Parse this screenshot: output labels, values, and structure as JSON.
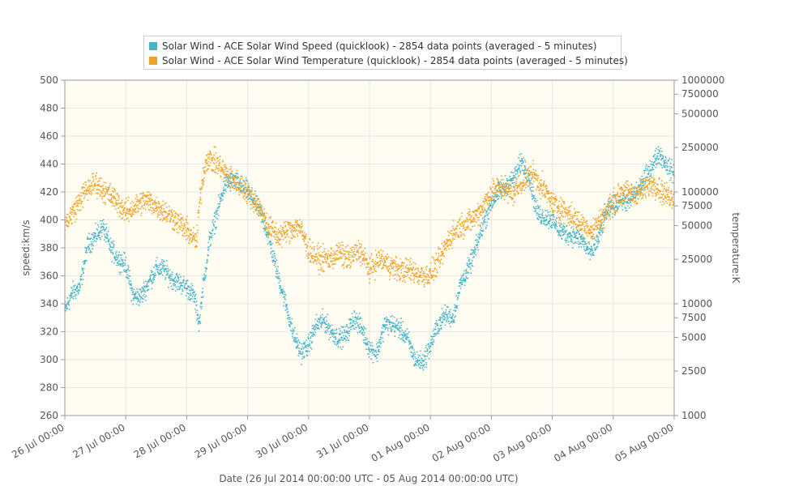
{
  "chart_data": {
    "type": "scatter",
    "title": "",
    "xlabel": "Date (26 Jul 2014 00:00:00 UTC - 05 Aug 2014 00:00:00 UTC)",
    "ylabel_left": "speed:km/s",
    "ylabel_right": "temperature:K",
    "x_range": [
      "26 Jul 2014 00:00",
      "05 Aug 2014 00:00"
    ],
    "x_tick_labels": [
      "26 Jul 00:00",
      "27 Jul 00:00",
      "28 Jul 00:00",
      "29 Jul 00:00",
      "30 Jul 00:00",
      "31 Jul 00:00",
      "01 Aug 00:00",
      "02 Aug 00:00",
      "03 Aug 00:00",
      "04 Aug 00:00",
      "05 Aug 00:00"
    ],
    "ylim_left": [
      260,
      500
    ],
    "y_ticks_left": [
      260,
      280,
      300,
      320,
      340,
      360,
      380,
      400,
      420,
      440,
      460,
      480,
      500
    ],
    "ylim_right": [
      1000,
      1000000
    ],
    "y_scale_right": "log",
    "y_ticks_right": [
      1000,
      2500,
      5000,
      7500,
      10000,
      25000,
      50000,
      75000,
      100000,
      250000,
      500000,
      750000,
      1000000
    ],
    "y_tick_labels_right": [
      "1000",
      "2500",
      "5000",
      "7500",
      "10000",
      "25000",
      "50000",
      "75000",
      "100000",
      "250000",
      "500000",
      "750000",
      "1000000"
    ],
    "grid": true,
    "legend_position": "top-center",
    "series": [
      {
        "name": "Solar Wind - ACE Solar Wind Speed (quicklook) - 2854 data points (averaged - 5 minutes)",
        "axis": "left",
        "color": "#46b3c8",
        "points_per_hour": 12,
        "profile": [
          [
            "26 Jul 2014 00:00",
            335
          ],
          [
            "26 Jul 2014 03:00",
            348
          ],
          [
            "26 Jul 2014 06:00",
            352
          ],
          [
            "26 Jul 2014 09:00",
            382
          ],
          [
            "26 Jul 2014 12:00",
            388
          ],
          [
            "26 Jul 2014 15:00",
            395
          ],
          [
            "26 Jul 2014 18:00",
            380
          ],
          [
            "26 Jul 2014 21:00",
            372
          ],
          [
            "27 Jul 2014 00:00",
            368
          ],
          [
            "27 Jul 2014 03:00",
            345
          ],
          [
            "27 Jul 2014 06:00",
            345
          ],
          [
            "27 Jul 2014 09:00",
            355
          ],
          [
            "27 Jul 2014 12:00",
            365
          ],
          [
            "27 Jul 2014 15:00",
            365
          ],
          [
            "27 Jul 2014 18:00",
            358
          ],
          [
            "27 Jul 2014 21:00",
            355
          ],
          [
            "28 Jul 2014 00:00",
            352
          ],
          [
            "28 Jul 2014 03:00",
            345
          ],
          [
            "28 Jul 2014 05:00",
            325
          ],
          [
            "28 Jul 2014 06:00",
            345
          ],
          [
            "28 Jul 2014 09:00",
            385
          ],
          [
            "28 Jul 2014 12:00",
            405
          ],
          [
            "28 Jul 2014 15:00",
            425
          ],
          [
            "28 Jul 2014 18:00",
            428
          ],
          [
            "28 Jul 2014 21:00",
            425
          ],
          [
            "29 Jul 2014 00:00",
            420
          ],
          [
            "29 Jul 2014 03:00",
            412
          ],
          [
            "29 Jul 2014 06:00",
            402
          ],
          [
            "29 Jul 2014 09:00",
            382
          ],
          [
            "29 Jul 2014 12:00",
            360
          ],
          [
            "29 Jul 2014 15:00",
            340
          ],
          [
            "29 Jul 2014 18:00",
            318
          ],
          [
            "29 Jul 2014 21:00",
            305
          ],
          [
            "30 Jul 2014 00:00",
            310
          ],
          [
            "30 Jul 2014 03:00",
            325
          ],
          [
            "30 Jul 2014 06:00",
            328
          ],
          [
            "30 Jul 2014 09:00",
            320
          ],
          [
            "30 Jul 2014 12:00",
            315
          ],
          [
            "30 Jul 2014 15:00",
            318
          ],
          [
            "30 Jul 2014 18:00",
            330
          ],
          [
            "30 Jul 2014 21:00",
            322
          ],
          [
            "31 Jul 2014 00:00",
            308
          ],
          [
            "31 Jul 2014 03:00",
            305
          ],
          [
            "31 Jul 2014 06:00",
            325
          ],
          [
            "31 Jul 2014 09:00",
            325
          ],
          [
            "31 Jul 2014 12:00",
            322
          ],
          [
            "31 Jul 2014 15:00",
            315
          ],
          [
            "31 Jul 2014 18:00",
            300
          ],
          [
            "31 Jul 2014 21:00",
            298
          ],
          [
            "01 Aug 2014 00:00",
            310
          ],
          [
            "01 Aug 2014 03:00",
            325
          ],
          [
            "01 Aug 2014 06:00",
            332
          ],
          [
            "01 Aug 2014 09:00",
            330
          ],
          [
            "01 Aug 2014 12:00",
            355
          ],
          [
            "01 Aug 2014 15:00",
            365
          ],
          [
            "01 Aug 2014 18:00",
            380
          ],
          [
            "01 Aug 2014 21:00",
            398
          ],
          [
            "02 Aug 2014 00:00",
            412
          ],
          [
            "02 Aug 2014 03:00",
            420
          ],
          [
            "02 Aug 2014 06:00",
            425
          ],
          [
            "02 Aug 2014 09:00",
            430
          ],
          [
            "02 Aug 2014 12:00",
            442
          ],
          [
            "02 Aug 2014 15:00",
            430
          ],
          [
            "02 Aug 2014 18:00",
            405
          ],
          [
            "02 Aug 2014 21:00",
            402
          ],
          [
            "03 Aug 2014 00:00",
            400
          ],
          [
            "03 Aug 2014 03:00",
            392
          ],
          [
            "03 Aug 2014 06:00",
            390
          ],
          [
            "03 Aug 2014 09:00",
            388
          ],
          [
            "03 Aug 2014 12:00",
            385
          ],
          [
            "03 Aug 2014 15:00",
            375
          ],
          [
            "03 Aug 2014 18:00",
            385
          ],
          [
            "03 Aug 2014 21:00",
            405
          ],
          [
            "04 Aug 2014 00:00",
            410
          ],
          [
            "04 Aug 2014 03:00",
            415
          ],
          [
            "04 Aug 2014 06:00",
            412
          ],
          [
            "04 Aug 2014 09:00",
            420
          ],
          [
            "04 Aug 2014 12:00",
            428
          ],
          [
            "04 Aug 2014 15:00",
            438
          ],
          [
            "04 Aug 2014 18:00",
            448
          ],
          [
            "04 Aug 2014 21:00",
            440
          ],
          [
            "05 Aug 2014 00:00",
            432
          ]
        ]
      },
      {
        "name": "Solar Wind - ACE Solar Wind Temperature (quicklook) - 2854 data points (averaged - 5 minutes)",
        "axis": "right",
        "color": "#f0a12a",
        "points_per_hour": 12,
        "profile": [
          [
            "26 Jul 2014 00:00",
            50000
          ],
          [
            "26 Jul 2014 04:00",
            70000
          ],
          [
            "26 Jul 2014 08:00",
            100000
          ],
          [
            "26 Jul 2014 12:00",
            120000
          ],
          [
            "26 Jul 2014 16:00",
            100000
          ],
          [
            "26 Jul 2014 20:00",
            85000
          ],
          [
            "27 Jul 2014 00:00",
            65000
          ],
          [
            "27 Jul 2014 04:00",
            75000
          ],
          [
            "27 Jul 2014 08:00",
            85000
          ],
          [
            "27 Jul 2014 12:00",
            75000
          ],
          [
            "27 Jul 2014 16:00",
            65000
          ],
          [
            "27 Jul 2014 20:00",
            55000
          ],
          [
            "28 Jul 2014 00:00",
            45000
          ],
          [
            "28 Jul 2014 04:00",
            35000
          ],
          [
            "28 Jul 2014 08:00",
            200000
          ],
          [
            "28 Jul 2014 12:00",
            180000
          ],
          [
            "28 Jul 2014 16:00",
            140000
          ],
          [
            "28 Jul 2014 20:00",
            120000
          ],
          [
            "29 Jul 2014 00:00",
            100000
          ],
          [
            "29 Jul 2014 04:00",
            75000
          ],
          [
            "29 Jul 2014 08:00",
            50000
          ],
          [
            "29 Jul 2014 12:00",
            40000
          ],
          [
            "29 Jul 2014 16:00",
            45000
          ],
          [
            "29 Jul 2014 20:00",
            50000
          ],
          [
            "30 Jul 2014 00:00",
            30000
          ],
          [
            "30 Jul 2014 04:00",
            25000
          ],
          [
            "30 Jul 2014 08:00",
            25000
          ],
          [
            "30 Jul 2014 12:00",
            28000
          ],
          [
            "30 Jul 2014 16:00",
            25000
          ],
          [
            "30 Jul 2014 20:00",
            30000
          ],
          [
            "31 Jul 2014 00:00",
            20000
          ],
          [
            "31 Jul 2014 04:00",
            25000
          ],
          [
            "31 Jul 2014 08:00",
            22000
          ],
          [
            "31 Jul 2014 12:00",
            20000
          ],
          [
            "31 Jul 2014 16:00",
            20000
          ],
          [
            "31 Jul 2014 20:00",
            18000
          ],
          [
            "01 Aug 2014 00:00",
            18000
          ],
          [
            "01 Aug 2014 04:00",
            25000
          ],
          [
            "01 Aug 2014 08:00",
            40000
          ],
          [
            "01 Aug 2014 12:00",
            50000
          ],
          [
            "01 Aug 2014 16:00",
            55000
          ],
          [
            "01 Aug 2014 20:00",
            70000
          ],
          [
            "02 Aug 2014 00:00",
            100000
          ],
          [
            "02 Aug 2014 04:00",
            110000
          ],
          [
            "02 Aug 2014 08:00",
            95000
          ],
          [
            "02 Aug 2014 12:00",
            120000
          ],
          [
            "02 Aug 2014 16:00",
            150000
          ],
          [
            "02 Aug 2014 20:00",
            110000
          ],
          [
            "03 Aug 2014 00:00",
            80000
          ],
          [
            "03 Aug 2014 04:00",
            70000
          ],
          [
            "03 Aug 2014 08:00",
            60000
          ],
          [
            "03 Aug 2014 12:00",
            50000
          ],
          [
            "03 Aug 2014 16:00",
            45000
          ],
          [
            "03 Aug 2014 20:00",
            60000
          ],
          [
            "04 Aug 2014 00:00",
            80000
          ],
          [
            "04 Aug 2014 04:00",
            100000
          ],
          [
            "04 Aug 2014 08:00",
            95000
          ],
          [
            "04 Aug 2014 12:00",
            105000
          ],
          [
            "04 Aug 2014 16:00",
            120000
          ],
          [
            "04 Aug 2014 20:00",
            95000
          ],
          [
            "05 Aug 2014 00:00",
            90000
          ]
        ]
      }
    ]
  },
  "colors": {
    "plot_background": "#fffdf2",
    "grid_line": "#e6e6e6",
    "axis_line": "#999999",
    "text": "#555555"
  }
}
